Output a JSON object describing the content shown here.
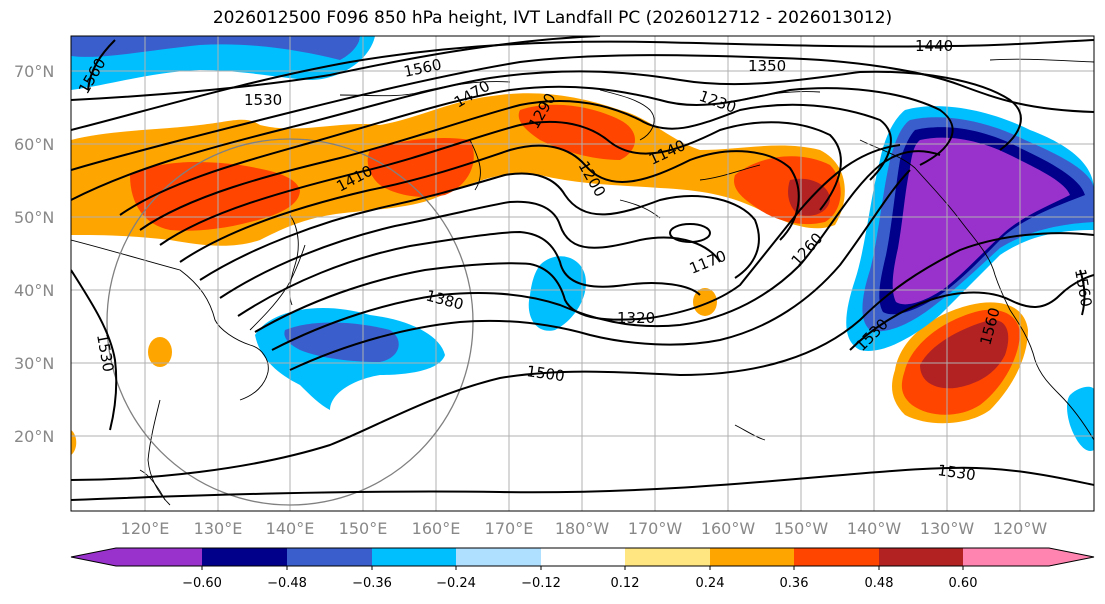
{
  "title": "2026012500 F096 850 hPa height, IVT Landfall PC (2026012712 - 2026013012)",
  "lat_labels": [
    "70°N",
    "60°N",
    "50°N",
    "40°N",
    "30°N",
    "20°N"
  ],
  "lon_labels": [
    "120°E",
    "130°E",
    "140°E",
    "150°E",
    "160°E",
    "170°E",
    "180°W",
    "170°W",
    "160°W",
    "150°W",
    "140°W",
    "130°W",
    "120°W"
  ],
  "contour_labels": [
    "1440",
    "1560",
    "1350",
    "1470",
    "1230",
    "1530",
    "1290",
    "1140",
    "1200",
    "1410",
    "1170",
    "1260",
    "1380",
    "1320",
    "1530",
    "1500",
    "1560",
    "1530",
    "1560",
    "1530",
    "1560"
  ],
  "colorbar": {
    "ticks": [
      "−0.60",
      "−0.48",
      "−0.36",
      "−0.24",
      "−0.12",
      "0.12",
      "0.24",
      "0.36",
      "0.48",
      "0.60"
    ],
    "colors": [
      "#9932cc",
      "#00008b",
      "#3a5fcd",
      "#00bfff",
      "#b0e0ff",
      "#ffffff",
      "#ffe680",
      "#ffa500",
      "#ff4500",
      "#b22222",
      "#ff85b0"
    ]
  },
  "fill_colors": {
    "orange": "#ffa500",
    "red": "#ff4500",
    "darkred": "#b22222",
    "lightblue": "#00bfff",
    "midblue": "#3a5fcd",
    "navy": "#00008b",
    "purple": "#9932cc"
  }
}
